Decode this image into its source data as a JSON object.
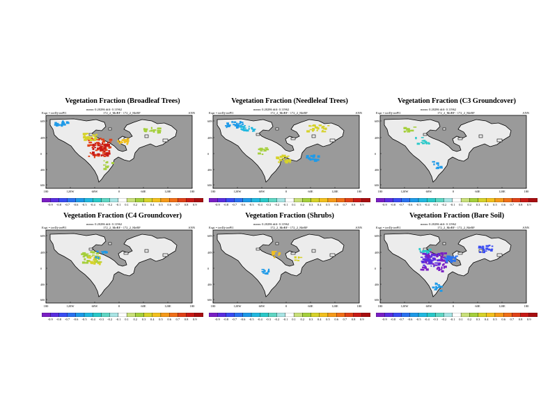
{
  "chart_data": {
    "type": "heatmap",
    "colorbar": {
      "ticks": [
        "-0.9",
        "-0.8",
        "-0.7",
        "-0.6",
        "-0.5",
        "-0.4",
        "-0.3",
        "-0.2",
        "-0.1",
        "0.1",
        "0.2",
        "0.3",
        "0.4",
        "0.5",
        "0.6",
        "0.7",
        "0.8",
        "0.9"
      ],
      "colors": [
        "#7a1fc4",
        "#5a2ee0",
        "#3a4cf2",
        "#2a72f0",
        "#1e9ae8",
        "#21b8e0",
        "#2ac9c9",
        "#5fd6c4",
        "#a8e4e4",
        "#ffffff",
        "#c9e07a",
        "#a5cf3c",
        "#d6d22a",
        "#f2c01e",
        "#f59a1a",
        "#f07018",
        "#e04218",
        "#c81a16",
        "#a80e10"
      ],
      "range": [
        -0.9,
        0.9
      ]
    },
    "x_ticks": [
      "180",
      "120W",
      "60W",
      "0",
      "60E",
      "120E",
      "180"
    ],
    "y_ticks": [
      "60N",
      "40N",
      "0",
      "40S",
      "60S"
    ],
    "panels": [
      {
        "title": "Vegetation Fraction (Broadleaf Trees)",
        "expt": "Expt = teeDj-teePl1",
        "runinfo": "172_2_MeBF - 172_2_MeBF",
        "stats": "mean: 0.20286 diff: 0.11962",
        "season": "ANN",
        "anomaly": "positive-strong"
      },
      {
        "title": "Vegetation Fraction (Needleleaf Trees)",
        "expt": "Expt = teeDj-teePl1",
        "runinfo": "172_2_MeBF - 172_2_MeBF",
        "stats": "mean: 0.20286 diff: 0.11962",
        "season": "ANN",
        "anomaly": "mixed"
      },
      {
        "title": "Vegetation Fraction (C3 Groundcover)",
        "expt": "Expt = teeDj-teePl1",
        "runinfo": "172_2_MeBF - 172_2_MeBF",
        "stats": "mean: 0.20286 diff: 0.11962",
        "season": "ANN",
        "anomaly": "weak"
      },
      {
        "title": "Vegetation Fraction (C4 Groundcover)",
        "expt": "Expt = teeDj-teePl1",
        "runinfo": "172_2_MeBF - 172_2_MeBF",
        "stats": "mean: 0.20286 diff: 0.11962",
        "season": "ANN",
        "anomaly": "weak-positive"
      },
      {
        "title": "Vegetation Fraction (Shrubs)",
        "expt": "Expt = teeDj-teePl1",
        "runinfo": "172_2_MeBF - 172_2_MeBF",
        "stats": "mean: 0.20286 diff: 0.11962",
        "season": "ANN",
        "anomaly": "sparse"
      },
      {
        "title": "Vegetation Fraction (Bare Soil)",
        "expt": "Expt = teeDj-teePl1",
        "runinfo": "172_2_MeBF - 172_2_MeBF",
        "stats": "mean: 0.20286 diff: 0.11962",
        "season": "ANN",
        "anomaly": "negative-strong"
      }
    ]
  }
}
